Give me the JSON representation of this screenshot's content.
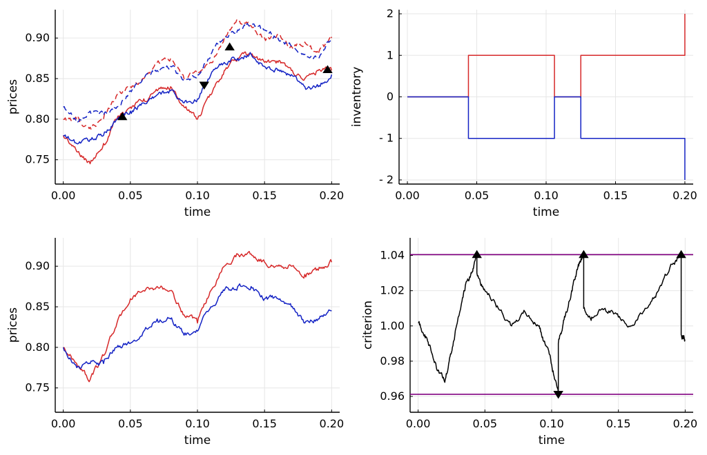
{
  "colors": {
    "red": "#d62728",
    "blue": "#1322c4",
    "black": "#000000",
    "purple": "#800080",
    "grid": "#e6e6e6"
  },
  "chart_data": [
    {
      "id": "prices-top",
      "type": "line",
      "xlabel": "time",
      "ylabel": "prices",
      "xlim": [
        -0.006,
        0.206
      ],
      "ylim": [
        0.72,
        0.935
      ],
      "xticks": [
        0.0,
        0.05,
        0.1,
        0.15,
        0.2
      ],
      "xtick_labels": [
        "0.00",
        "0.05",
        "0.10",
        "0.15",
        "0.20"
      ],
      "yticks": [
        0.75,
        0.8,
        0.85,
        0.9
      ],
      "ytick_labels": [
        "0.75",
        "0.80",
        "0.85",
        "0.90"
      ],
      "grid": true,
      "series": [
        {
          "color": "red",
          "dash": true,
          "noise": 0.005,
          "x": [
            0.0,
            0.01,
            0.02,
            0.03,
            0.04,
            0.05,
            0.06,
            0.07,
            0.08,
            0.09,
            0.1,
            0.11,
            0.12,
            0.13,
            0.14,
            0.15,
            0.16,
            0.17,
            0.18,
            0.19,
            0.2
          ],
          "y": [
            0.8,
            0.8,
            0.79,
            0.8,
            0.83,
            0.84,
            0.85,
            0.87,
            0.875,
            0.85,
            0.86,
            0.87,
            0.9,
            0.92,
            0.915,
            0.9,
            0.905,
            0.89,
            0.895,
            0.88,
            0.9
          ]
        },
        {
          "color": "blue",
          "dash": true,
          "noise": 0.005,
          "x": [
            0.0,
            0.01,
            0.02,
            0.03,
            0.04,
            0.05,
            0.06,
            0.07,
            0.08,
            0.09,
            0.1,
            0.11,
            0.12,
            0.13,
            0.14,
            0.15,
            0.16,
            0.17,
            0.18,
            0.19,
            0.2
          ],
          "y": [
            0.815,
            0.8,
            0.81,
            0.805,
            0.815,
            0.835,
            0.85,
            0.86,
            0.865,
            0.85,
            0.855,
            0.88,
            0.9,
            0.91,
            0.915,
            0.91,
            0.9,
            0.89,
            0.88,
            0.875,
            0.9
          ]
        },
        {
          "color": "red",
          "dash": false,
          "noise": 0.005,
          "x": [
            0.0,
            0.01,
            0.02,
            0.03,
            0.04,
            0.05,
            0.06,
            0.07,
            0.08,
            0.09,
            0.1,
            0.11,
            0.12,
            0.13,
            0.14,
            0.15,
            0.16,
            0.17,
            0.18,
            0.19,
            0.2
          ],
          "y": [
            0.78,
            0.76,
            0.745,
            0.77,
            0.8,
            0.815,
            0.825,
            0.835,
            0.84,
            0.815,
            0.8,
            0.83,
            0.86,
            0.875,
            0.88,
            0.87,
            0.87,
            0.86,
            0.85,
            0.86,
            0.86
          ]
        },
        {
          "color": "blue",
          "dash": false,
          "noise": 0.005,
          "x": [
            0.0,
            0.01,
            0.02,
            0.03,
            0.04,
            0.05,
            0.06,
            0.07,
            0.08,
            0.09,
            0.1,
            0.11,
            0.12,
            0.13,
            0.14,
            0.15,
            0.16,
            0.17,
            0.18,
            0.19,
            0.2
          ],
          "y": [
            0.78,
            0.77,
            0.775,
            0.78,
            0.8,
            0.81,
            0.82,
            0.83,
            0.835,
            0.82,
            0.825,
            0.855,
            0.87,
            0.875,
            0.88,
            0.865,
            0.86,
            0.855,
            0.84,
            0.84,
            0.855
          ]
        }
      ],
      "markers": [
        {
          "x": 0.044,
          "y": 0.803,
          "shape": "triangle-up"
        },
        {
          "x": 0.105,
          "y": 0.842,
          "shape": "triangle-down"
        },
        {
          "x": 0.124,
          "y": 0.889,
          "shape": "triangle-up"
        },
        {
          "x": 0.197,
          "y": 0.861,
          "shape": "triangle-up"
        }
      ]
    },
    {
      "id": "inventory",
      "type": "line",
      "xlabel": "time",
      "ylabel": "inventrory",
      "xlim": [
        -0.006,
        0.206
      ],
      "ylim": [
        -2.1,
        2.1
      ],
      "xticks": [
        0.0,
        0.05,
        0.1,
        0.15,
        0.2
      ],
      "xtick_labels": [
        "0.00",
        "0.05",
        "0.10",
        "0.15",
        "0.20"
      ],
      "yticks": [
        -2,
        -1,
        0,
        1,
        2
      ],
      "ytick_labels": [
        "- 2",
        "- 1",
        "0",
        "1",
        "2"
      ],
      "grid": true,
      "series": [
        {
          "color": "red",
          "step": true,
          "x": [
            0.0,
            0.044,
            0.044,
            0.106,
            0.106,
            0.125,
            0.125,
            0.2,
            0.2
          ],
          "y": [
            0,
            0,
            1,
            1,
            0,
            0,
            1,
            1,
            2
          ]
        },
        {
          "color": "blue",
          "step": true,
          "x": [
            0.0,
            0.044,
            0.044,
            0.106,
            0.106,
            0.125,
            0.125,
            0.2,
            0.2
          ],
          "y": [
            0,
            0,
            -1,
            -1,
            0,
            0,
            -1,
            -1,
            -2
          ]
        }
      ]
    },
    {
      "id": "prices-bottom",
      "type": "line",
      "xlabel": "time",
      "ylabel": "prices",
      "xlim": [
        -0.006,
        0.206
      ],
      "ylim": [
        0.72,
        0.935
      ],
      "xticks": [
        0.0,
        0.05,
        0.1,
        0.15,
        0.2
      ],
      "xtick_labels": [
        "0.00",
        "0.05",
        "0.10",
        "0.15",
        "0.20"
      ],
      "yticks": [
        0.75,
        0.8,
        0.85,
        0.9
      ],
      "ytick_labels": [
        "0.75",
        "0.80",
        "0.85",
        "0.90"
      ],
      "grid": true,
      "series": [
        {
          "color": "red",
          "noise": 0.005,
          "x": [
            0.0,
            0.01,
            0.02,
            0.03,
            0.04,
            0.05,
            0.06,
            0.07,
            0.08,
            0.09,
            0.1,
            0.11,
            0.12,
            0.13,
            0.14,
            0.15,
            0.16,
            0.17,
            0.18,
            0.19,
            0.2
          ],
          "y": [
            0.8,
            0.78,
            0.76,
            0.79,
            0.83,
            0.86,
            0.87,
            0.875,
            0.87,
            0.84,
            0.83,
            0.87,
            0.9,
            0.915,
            0.915,
            0.905,
            0.9,
            0.9,
            0.89,
            0.895,
            0.905
          ]
        },
        {
          "color": "blue",
          "noise": 0.005,
          "x": [
            0.0,
            0.01,
            0.02,
            0.03,
            0.04,
            0.05,
            0.06,
            0.07,
            0.08,
            0.09,
            0.1,
            0.11,
            0.12,
            0.13,
            0.14,
            0.15,
            0.16,
            0.17,
            0.18,
            0.19,
            0.2
          ],
          "y": [
            0.8,
            0.775,
            0.78,
            0.78,
            0.8,
            0.805,
            0.82,
            0.835,
            0.835,
            0.815,
            0.82,
            0.85,
            0.87,
            0.875,
            0.875,
            0.86,
            0.86,
            0.85,
            0.83,
            0.835,
            0.845
          ]
        }
      ]
    },
    {
      "id": "criterion",
      "type": "line",
      "xlabel": "time",
      "ylabel": "criterion",
      "xlim": [
        -0.006,
        0.206
      ],
      "ylim": [
        0.951,
        1.05
      ],
      "xticks": [
        0.0,
        0.05,
        0.1,
        0.15,
        0.2
      ],
      "xtick_labels": [
        "0.00",
        "0.05",
        "0.10",
        "0.15",
        "0.20"
      ],
      "yticks": [
        0.96,
        0.98,
        1.0,
        1.02,
        1.04
      ],
      "ytick_labels": [
        "0.96",
        "0.98",
        "1.00",
        "1.02",
        "1.04"
      ],
      "grid": true,
      "hlines": [
        {
          "y": 1.0405,
          "color": "purple"
        },
        {
          "y": 0.9612,
          "color": "purple"
        }
      ],
      "series": [
        {
          "color": "black",
          "noise": 0.0025,
          "x": [
            0.0,
            0.005,
            0.01,
            0.015,
            0.02,
            0.025,
            0.03,
            0.035,
            0.04,
            0.044,
            0.044,
            0.05,
            0.06,
            0.07,
            0.08,
            0.09,
            0.095,
            0.1,
            0.105,
            0.105,
            0.11,
            0.115,
            0.12,
            0.124,
            0.124,
            0.13,
            0.14,
            0.15,
            0.16,
            0.17,
            0.18,
            0.19,
            0.197,
            0.197,
            0.2
          ],
          "y": [
            1.002,
            0.995,
            0.985,
            0.975,
            0.968,
            0.985,
            1.005,
            1.02,
            1.03,
            1.04,
            1.03,
            1.02,
            1.01,
            1.0,
            1.008,
            1.0,
            0.99,
            0.978,
            0.962,
            0.99,
            1.005,
            1.02,
            1.035,
            1.04,
            1.01,
            1.005,
            1.01,
            1.005,
            1.0,
            1.01,
            1.02,
            1.035,
            1.04,
            0.995,
            0.992
          ]
        }
      ],
      "markers": [
        {
          "x": 0.044,
          "y": 1.0405,
          "shape": "triangle-up"
        },
        {
          "x": 0.105,
          "y": 0.9612,
          "shape": "triangle-down"
        },
        {
          "x": 0.124,
          "y": 1.0405,
          "shape": "triangle-up"
        },
        {
          "x": 0.197,
          "y": 1.0405,
          "shape": "triangle-up"
        }
      ]
    }
  ]
}
